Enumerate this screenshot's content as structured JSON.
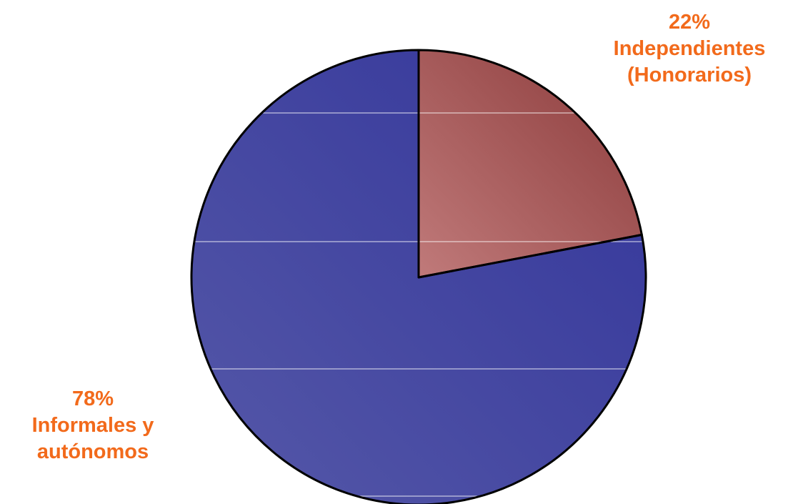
{
  "chart_data": {
    "type": "pie",
    "title": "",
    "slices": [
      {
        "value": 22,
        "percent_label": "22%",
        "label_lines": [
          "Independientes",
          "(Honorarios)"
        ],
        "color_light": "#c07a7a",
        "color_dark": "#8b3a3a"
      },
      {
        "value": 78,
        "percent_label": "78%",
        "label_lines": [
          "Informales y",
          "autónomos"
        ],
        "color_light": "#5558a8",
        "color_dark": "#33359a"
      }
    ],
    "start_angle": "12 o'clock",
    "direction": "clockwise",
    "label_color": "#f26a1b",
    "outline_color": "#000000",
    "gridline_color": "#ffffff"
  }
}
